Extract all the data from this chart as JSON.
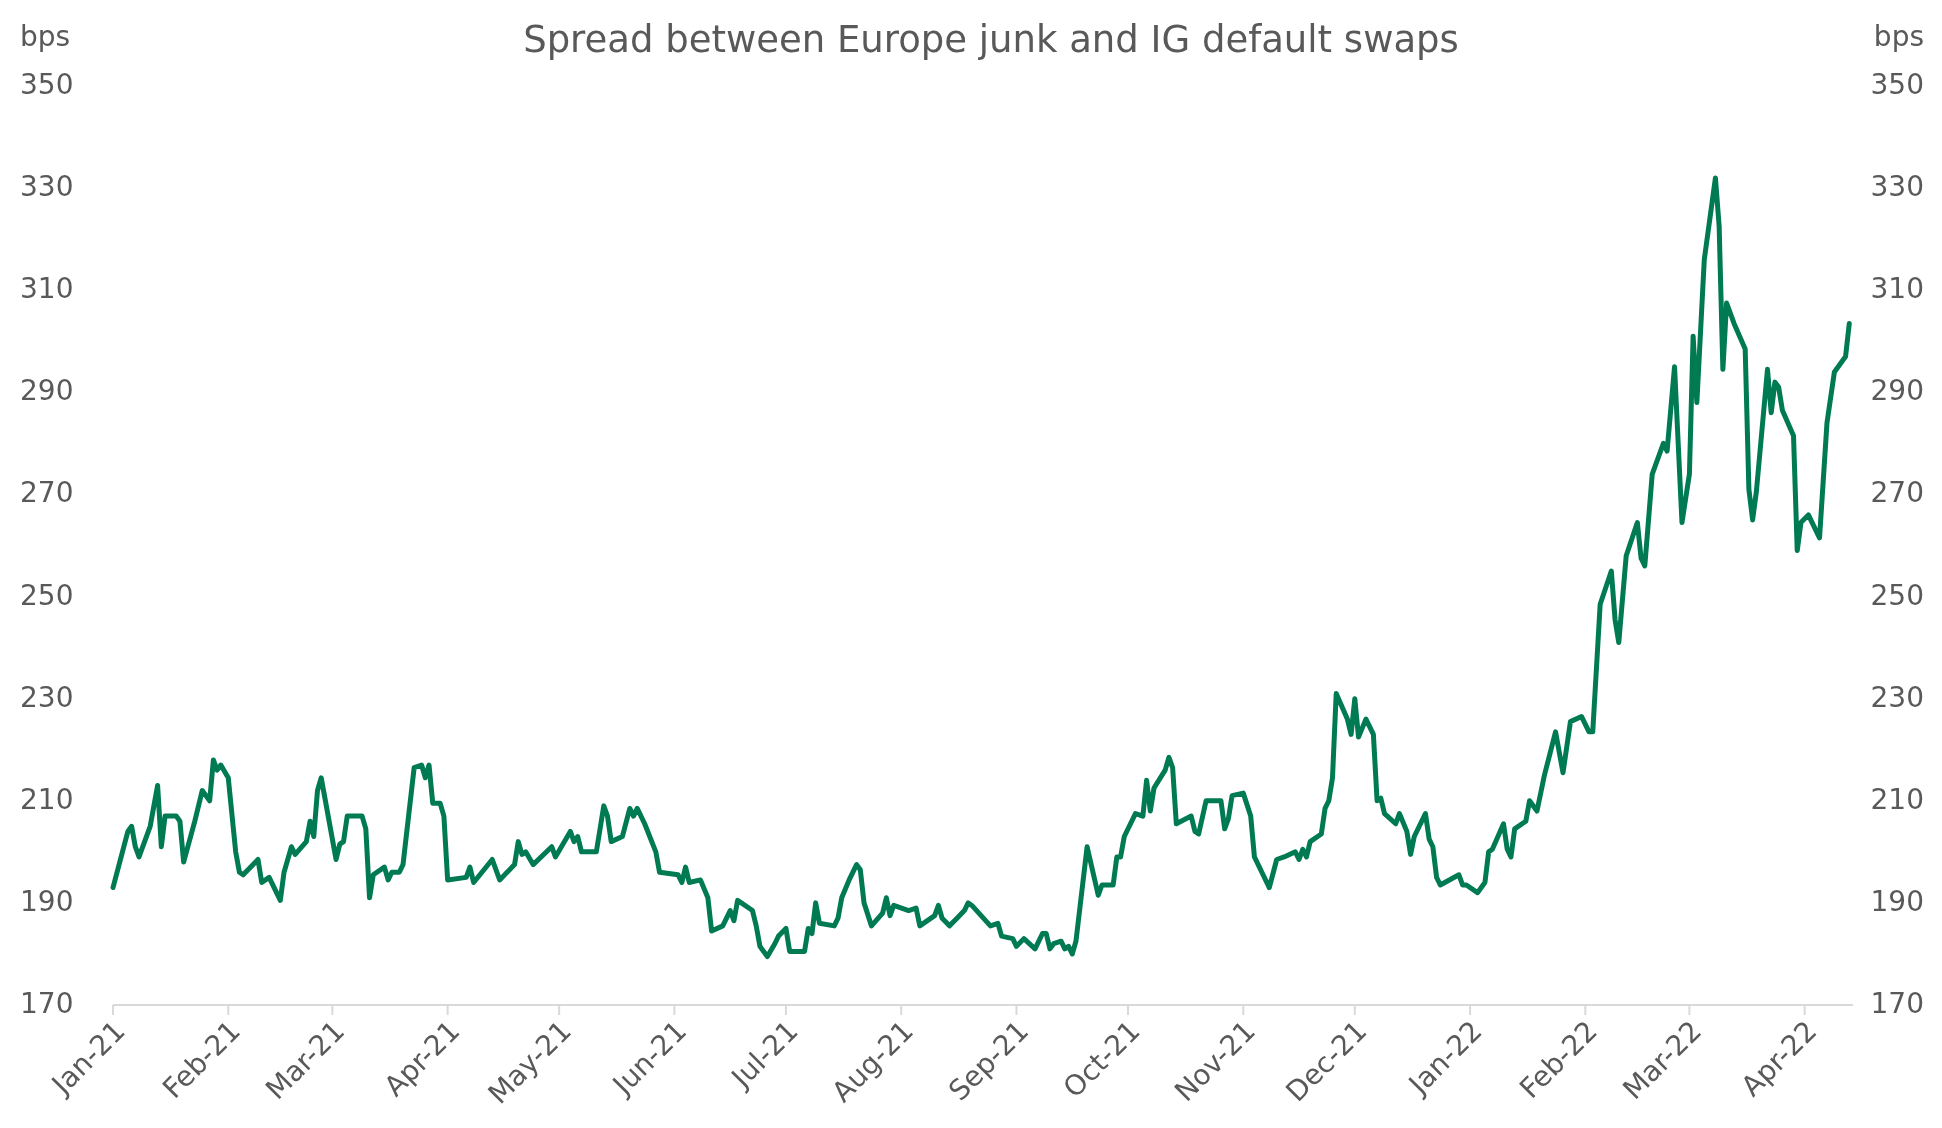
{
  "chart_data": {
    "type": "line",
    "title": "Spread between Europe junk and IG default swaps",
    "ylabel": "bps",
    "y2label": "bps",
    "grid": false,
    "xlim": [
      "2021-01-01",
      "2022-04-14"
    ],
    "xticks": [
      {
        "value": "2021-01-01",
        "label": "Jan-21"
      },
      {
        "value": "2021-02-01",
        "label": "Feb-21"
      },
      {
        "value": "2021-03-01",
        "label": "Mar-21"
      },
      {
        "value": "2021-04-01",
        "label": "Apr-21"
      },
      {
        "value": "2021-05-01",
        "label": "May-21"
      },
      {
        "value": "2021-06-01",
        "label": "Jun-21"
      },
      {
        "value": "2021-07-01",
        "label": "Jul-21"
      },
      {
        "value": "2021-08-01",
        "label": "Aug-21"
      },
      {
        "value": "2021-09-01",
        "label": "Sep-21"
      },
      {
        "value": "2021-10-01",
        "label": "Oct-21"
      },
      {
        "value": "2021-11-01",
        "label": "Nov-21"
      },
      {
        "value": "2021-12-01",
        "label": "Dec-21"
      },
      {
        "value": "2022-01-01",
        "label": "Jan-22"
      },
      {
        "value": "2022-02-01",
        "label": "Feb-22"
      },
      {
        "value": "2022-03-01",
        "label": "Mar-22"
      },
      {
        "value": "2022-04-01",
        "label": "Apr-22"
      }
    ],
    "ylim": [
      170,
      350
    ],
    "yticks": [
      170,
      190,
      210,
      230,
      250,
      270,
      290,
      310,
      330,
      350
    ],
    "y2lim": [
      170,
      350
    ],
    "y2ticks": [
      170,
      190,
      210,
      230,
      250,
      270,
      290,
      310,
      330,
      350
    ],
    "series": [
      {
        "color": "#007a53",
        "x": [
          "2021-01-01",
          "2021-01-05",
          "2021-01-06",
          "2021-01-07",
          "2021-01-08",
          "2021-01-11",
          "2021-01-13",
          "2021-01-14",
          "2021-01-15",
          "2021-01-18",
          "2021-01-19",
          "2021-01-20",
          "2021-01-23",
          "2021-01-25",
          "2021-01-27",
          "2021-01-28",
          "2021-01-29",
          "2021-01-30",
          "2021-02-01",
          "2021-02-03",
          "2021-02-04",
          "2021-02-05",
          "2021-02-09",
          "2021-02-10",
          "2021-02-12",
          "2021-02-15",
          "2021-02-16",
          "2021-02-18",
          "2021-02-19",
          "2021-02-22",
          "2021-02-23",
          "2021-02-24",
          "2021-02-25",
          "2021-02-26",
          "2021-03-02",
          "2021-03-03",
          "2021-03-04",
          "2021-03-05",
          "2021-03-09",
          "2021-03-10",
          "2021-03-11",
          "2021-03-12",
          "2021-03-15",
          "2021-03-16",
          "2021-03-17",
          "2021-03-19",
          "2021-03-20",
          "2021-03-23",
          "2021-03-25",
          "2021-03-26",
          "2021-03-27",
          "2021-03-28",
          "2021-03-30",
          "2021-03-31",
          "2021-04-01",
          "2021-04-06",
          "2021-04-07",
          "2021-04-08",
          "2021-04-13",
          "2021-04-15",
          "2021-04-19",
          "2021-04-20",
          "2021-04-21",
          "2021-04-22",
          "2021-04-24",
          "2021-04-29",
          "2021-04-30",
          "2021-05-04",
          "2021-05-05",
          "2021-05-06",
          "2021-05-07",
          "2021-05-11",
          "2021-05-13",
          "2021-05-14",
          "2021-05-15",
          "2021-05-18",
          "2021-05-20",
          "2021-05-21",
          "2021-05-22",
          "2021-05-24",
          "2021-05-27",
          "2021-05-28",
          "2021-06-02",
          "2021-06-03",
          "2021-06-04",
          "2021-06-05",
          "2021-06-08",
          "2021-06-10",
          "2021-06-11",
          "2021-06-14",
          "2021-06-16",
          "2021-06-17",
          "2021-06-18",
          "2021-06-22",
          "2021-06-23",
          "2021-06-24",
          "2021-06-26",
          "2021-06-28",
          "2021-06-29",
          "2021-07-01",
          "2021-07-02",
          "2021-07-06",
          "2021-07-07",
          "2021-07-08",
          "2021-07-09",
          "2021-07-10",
          "2021-07-14",
          "2021-07-15",
          "2021-07-16",
          "2021-07-18",
          "2021-07-20",
          "2021-07-21",
          "2021-07-22",
          "2021-07-24",
          "2021-07-27",
          "2021-07-28",
          "2021-07-29",
          "2021-07-30",
          "2021-08-03",
          "2021-08-05",
          "2021-08-06",
          "2021-08-10",
          "2021-08-11",
          "2021-08-12",
          "2021-08-14",
          "2021-08-16",
          "2021-08-18",
          "2021-08-19",
          "2021-08-20",
          "2021-08-25",
          "2021-08-27",
          "2021-08-28",
          "2021-08-31",
          "2021-09-01",
          "2021-09-03",
          "2021-09-06",
          "2021-09-08",
          "2021-09-09",
          "2021-09-10",
          "2021-09-11",
          "2021-09-13",
          "2021-09-14",
          "2021-09-15",
          "2021-09-16",
          "2021-09-17",
          "2021-09-20",
          "2021-09-23",
          "2021-09-24",
          "2021-09-27",
          "2021-09-28",
          "2021-09-29",
          "2021-09-30",
          "2021-10-03",
          "2021-10-05",
          "2021-10-06",
          "2021-10-07",
          "2021-10-08",
          "2021-10-11",
          "2021-10-12",
          "2021-10-13",
          "2021-10-14",
          "2021-10-18",
          "2021-10-19",
          "2021-10-20",
          "2021-10-22",
          "2021-10-26",
          "2021-10-27",
          "2021-10-28",
          "2021-10-29",
          "2021-11-01",
          "2021-11-03",
          "2021-11-04",
          "2021-11-06",
          "2021-11-08",
          "2021-11-10",
          "2021-11-12",
          "2021-11-15",
          "2021-11-16",
          "2021-11-17",
          "2021-11-18",
          "2021-11-19",
          "2021-11-22",
          "2021-11-23",
          "2021-11-24",
          "2021-11-25",
          "2021-11-26",
          "2021-11-29",
          "2021-11-30",
          "2021-12-01",
          "2021-12-02",
          "2021-12-04",
          "2021-12-06",
          "2021-12-07",
          "2021-12-08",
          "2021-12-09",
          "2021-12-12",
          "2021-12-13",
          "2021-12-15",
          "2021-12-16",
          "2021-12-17",
          "2021-12-20",
          "2021-12-21",
          "2021-12-22",
          "2021-12-23",
          "2021-12-24",
          "2021-12-29",
          "2021-12-30",
          "2021-12-31",
          "2022-01-03",
          "2022-01-05",
          "2022-01-06",
          "2022-01-07",
          "2022-01-10",
          "2022-01-11",
          "2022-01-12",
          "2022-01-13",
          "2022-01-16",
          "2022-01-17",
          "2022-01-19",
          "2022-01-21",
          "2022-01-24",
          "2022-01-26",
          "2022-01-28",
          "2022-01-31",
          "2022-02-02",
          "2022-02-03",
          "2022-02-05",
          "2022-02-08",
          "2022-02-09",
          "2022-02-10",
          "2022-02-12",
          "2022-02-15",
          "2022-02-16",
          "2022-02-17",
          "2022-02-19",
          "2022-02-22",
          "2022-02-23",
          "2022-02-25",
          "2022-02-27",
          "2022-03-01",
          "2022-03-02",
          "2022-03-03",
          "2022-03-05",
          "2022-03-08",
          "2022-03-09",
          "2022-03-10",
          "2022-03-11",
          "2022-03-13",
          "2022-03-16",
          "2022-03-17",
          "2022-03-18",
          "2022-03-19",
          "2022-03-22",
          "2022-03-23",
          "2022-03-24",
          "2022-03-25",
          "2022-03-26",
          "2022-03-29",
          "2022-03-30",
          "2022-03-31",
          "2022-04-02",
          "2022-04-05",
          "2022-04-07",
          "2022-04-09",
          "2022-04-12",
          "2022-04-13"
        ],
        "values": [
          193,
          204,
          205,
          201,
          199,
          205,
          213,
          201,
          207,
          207,
          206,
          198,
          206,
          212,
          210,
          218,
          216,
          217,
          214.5,
          200,
          196,
          195.5,
          198.5,
          194,
          195,
          190.5,
          196,
          201,
          199.5,
          202,
          206,
          203,
          212,
          214.5,
          198.5,
          201.5,
          202,
          207,
          207,
          204.5,
          191,
          195.5,
          197,
          194.5,
          196,
          196,
          197.5,
          216.5,
          217,
          214.5,
          217,
          209.5,
          209.5,
          207,
          194.5,
          195,
          197,
          194,
          198.5,
          194.5,
          197.5,
          202,
          199.5,
          200,
          197.5,
          201,
          199,
          204,
          202,
          203,
          200,
          200,
          209,
          207,
          202,
          203,
          208.5,
          207,
          208.5,
          205.5,
          200,
          196,
          195.5,
          194,
          197,
          194,
          194.5,
          191,
          184.5,
          185.5,
          188.5,
          186.5,
          190.5,
          188.5,
          185.5,
          181.5,
          179.5,
          182,
          183.5,
          185,
          180.5,
          180.5,
          185,
          184,
          190,
          186,
          185.5,
          187,
          191,
          194.5,
          197.5,
          196.5,
          190,
          185.5,
          188,
          191,
          187.5,
          189.5,
          188.5,
          189,
          185.5,
          187.5,
          189.5,
          187,
          185.5,
          187,
          188.5,
          190,
          189.5,
          185.5,
          186,
          183.5,
          183,
          181.5,
          183,
          181,
          184,
          184,
          181,
          182,
          182.5,
          181,
          181.5,
          180,
          182.5,
          201,
          191.5,
          193.5,
          193.5,
          199,
          199,
          203,
          207.5,
          207,
          214,
          208,
          212.5,
          216,
          218.5,
          216.5,
          205.5,
          207,
          204,
          203.5,
          210,
          210,
          204.5,
          206.5,
          211,
          211.5,
          207,
          199,
          196,
          193,
          198.5,
          199,
          200,
          198.5,
          200.5,
          199,
          202,
          203.5,
          208.5,
          210,
          214.5,
          231,
          226,
          223,
          230,
          222.5,
          226,
          223,
          210,
          210.5,
          207.5,
          205.5,
          207.5,
          204,
          199.5,
          203,
          207.5,
          202.5,
          201,
          195,
          193.5,
          195.5,
          193.5,
          193.5,
          192,
          194,
          200,
          200.5,
          205.5,
          200.5,
          199,
          204.5,
          206,
          210,
          208,
          215,
          223.5,
          215.5,
          225.5,
          226.5,
          223.5,
          223.5,
          248.5,
          255,
          245.5,
          241,
          258,
          264.5,
          257.5,
          256,
          274,
          280,
          278.5,
          295,
          264.5,
          274,
          301,
          288,
          316,
          332,
          322.5,
          294.5,
          307.5,
          303.5,
          298.5,
          271,
          265,
          270.5,
          294.5,
          286,
          292,
          291,
          286.5,
          281.5,
          259,
          264.5,
          266,
          261.5,
          284,
          294,
          297,
          303.5
        ]
      }
    ]
  }
}
